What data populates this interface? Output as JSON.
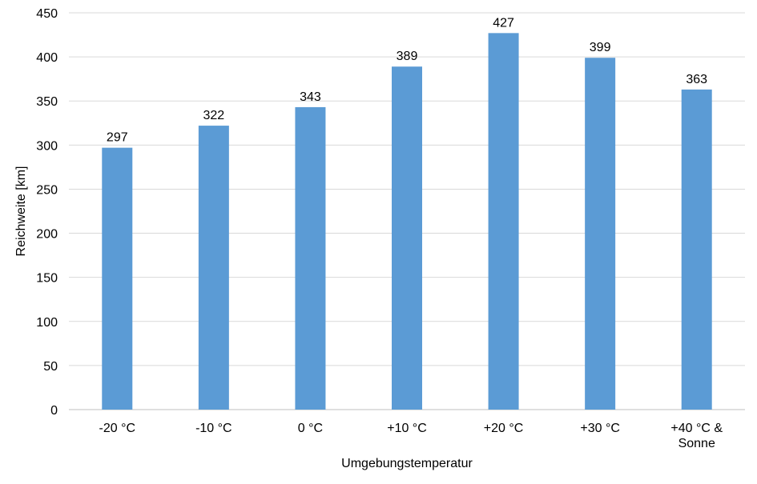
{
  "chart_data": {
    "type": "bar",
    "categories": [
      "-20 °C",
      "-10 °C",
      "0 °C",
      "+10 °C",
      "+20 °C",
      "+30 °C",
      "+40 °C & Sonne"
    ],
    "values": [
      297,
      322,
      343,
      389,
      427,
      399,
      363
    ],
    "data_labels": [
      "297",
      "322",
      "343",
      "389",
      "427",
      "399",
      "363"
    ],
    "title": "",
    "xlabel": "Umgebungstemperatur",
    "ylabel": "Reichweite [km]",
    "ylim": [
      0,
      450
    ],
    "yticks": [
      0,
      50,
      100,
      150,
      200,
      250,
      300,
      350,
      400,
      450
    ],
    "grid": true,
    "bar_color": "#5b9bd5",
    "grid_color": "#d9d9d9"
  }
}
